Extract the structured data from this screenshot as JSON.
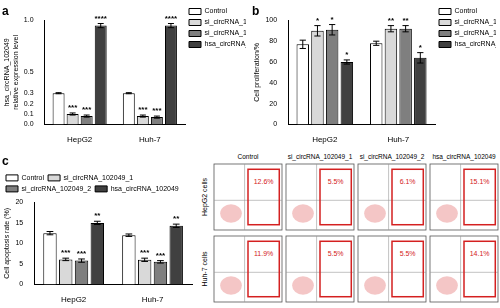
{
  "chart_data": [
    {
      "type": "bar",
      "title": "a",
      "y_label": [
        "hsa_circRNA_102049",
        "relative expression level"
      ],
      "categories": [
        "HepG2",
        "Huh-7"
      ],
      "series": [
        {
          "name": "Control",
          "color": "#ffffff",
          "values": [
            0.3,
            0.3
          ],
          "errors": [
            0.005,
            0.005
          ],
          "annotations": [
            null,
            null
          ]
        },
        {
          "name": "si_circRNA_102049_1",
          "color": "#d9d9d9",
          "values": [
            0.1,
            0.08
          ],
          "errors": [
            0.01,
            0.01
          ],
          "annotations": [
            "***",
            "***"
          ]
        },
        {
          "name": "si_circRNA_102049_2",
          "color": "#7f7f7f",
          "values": [
            0.08,
            0.07
          ],
          "errors": [
            0.01,
            0.01
          ],
          "annotations": [
            "***",
            "***"
          ]
        },
        {
          "name": "hsa_circRNA_102049",
          "color": "#404040",
          "values": [
            0.95,
            0.95
          ],
          "errors": [
            0.02,
            0.02
          ],
          "annotations": [
            "****",
            "****"
          ]
        }
      ],
      "ylim": [
        0,
        1.0
      ],
      "yticks": [
        {
          "value": 0,
          "label": "0.0"
        },
        0.1,
        0.2,
        0.3,
        0.5,
        {
          "value": 1.0,
          "label": "1.0"
        }
      ],
      "grid": false,
      "legend": "right"
    },
    {
      "type": "bar",
      "title": "b",
      "y_label": "Cell proliferation/%",
      "categories": [
        "HepG2",
        "Huh-7"
      ],
      "series": [
        {
          "name": "Control",
          "color": "#ffffff",
          "values": [
            77,
            78
          ],
          "errors": [
            4,
            2
          ],
          "annotations": [
            null,
            null
          ]
        },
        {
          "name": "si_circRNA_102049_1",
          "color": "#d9d9d9",
          "values": [
            90,
            92
          ],
          "errors": [
            5,
            3
          ],
          "annotations": [
            "*",
            "**"
          ]
        },
        {
          "name": "si_circRNA_102049_2",
          "color": "#7f7f7f",
          "values": [
            91,
            92
          ],
          "errors": [
            5,
            3
          ],
          "annotations": [
            "*",
            "**"
          ]
        },
        {
          "name": "hsa_circRNA_102049",
          "color": "#404040",
          "values": [
            60,
            64
          ],
          "errors": [
            2,
            5
          ],
          "annotations": [
            "*",
            "*"
          ]
        }
      ],
      "ylim": [
        0,
        100
      ],
      "yticks": [
        0,
        20,
        40,
        60,
        80,
        100
      ],
      "grid": false,
      "legend": "right"
    },
    {
      "type": "bar",
      "title": "c",
      "y_label": "Cell apoptosis rate (%)",
      "categories": [
        "HepG2",
        "Huh-7"
      ],
      "series": [
        {
          "name": "Control",
          "color": "#ffffff",
          "values": [
            12.5,
            12
          ],
          "errors": [
            0.4,
            0.3
          ],
          "annotations": [
            null,
            null
          ]
        },
        {
          "name": "si_circRNA_102049_1",
          "color": "#d9d9d9",
          "values": [
            6.1,
            6
          ],
          "errors": [
            0.3,
            0.4
          ],
          "annotations": [
            "***",
            "***"
          ]
        },
        {
          "name": "si_circRNA_102049_2",
          "color": "#7f7f7f",
          "values": [
            5.8,
            5.5
          ],
          "errors": [
            0.4,
            0.3
          ],
          "annotations": [
            "***",
            "***"
          ]
        },
        {
          "name": "hsa_circRNA_102049",
          "color": "#404040",
          "values": [
            15,
            14.3
          ],
          "errors": [
            0.4,
            0.4
          ],
          "annotations": [
            "**",
            "**"
          ]
        }
      ],
      "ylim": [
        0,
        20
      ],
      "yticks": [
        0,
        5,
        10,
        15,
        20
      ],
      "grid": false,
      "legend": "top"
    }
  ],
  "flow_cytometry": {
    "columns": [
      "Control",
      "si_circRNA_102049_1",
      "si_circRNA_102049_2",
      "hsa_circRNA_102049"
    ],
    "rows": [
      {
        "label": "HepG2 cells",
        "values": [
          "12.6%",
          "5.5%",
          "6.1%",
          "15.1%"
        ]
      },
      {
        "label": "Huh-7 cells",
        "values": [
          "11.9%",
          "5.5%",
          "5.5%",
          "14.1%"
        ]
      }
    ]
  }
}
